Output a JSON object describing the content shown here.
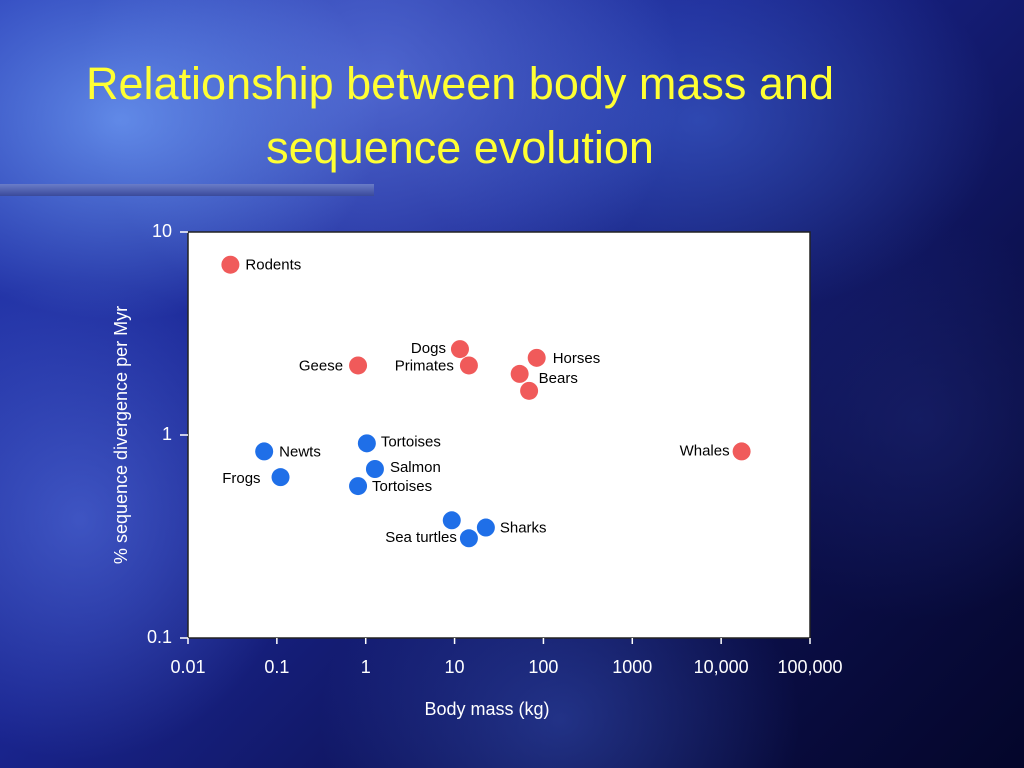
{
  "chart_data": {
    "type": "scatter",
    "title": "Relationship between body mass and sequence evolution",
    "x_label": "Body mass (kg)",
    "y_label": "% sequence divergence per Myr",
    "xscale": "log",
    "yscale": "log",
    "xlim": [
      0.01,
      100000
    ],
    "ylim": [
      0.1,
      10
    ],
    "xticks": [
      0.01,
      0.1,
      1,
      10,
      100,
      1000,
      {
        "value": 10000,
        "label": "10,000"
      },
      {
        "value": 100000,
        "label": "100,000"
      }
    ],
    "yticks": [
      0.1,
      1,
      10
    ],
    "series": [
      {
        "color": "#f05a5a",
        "x": [
          0.03,
          0.82,
          11.5,
          14.5,
          84,
          54,
          69,
          17000
        ],
        "values": [
          6.9,
          2.2,
          2.65,
          2.2,
          2.4,
          2.0,
          1.65,
          0.83
        ],
        "labels": [
          "Rodents",
          "Geese",
          "Dogs",
          "Primates",
          "Horses",
          "Bears",
          null,
          "Whales"
        ]
      },
      {
        "color": "#1f6fe8",
        "x": [
          0.072,
          0.11,
          1.03,
          1.27,
          0.82,
          9.3,
          14.5,
          22.5
        ],
        "values": [
          0.83,
          0.62,
          0.91,
          0.68,
          0.56,
          0.38,
          0.31,
          0.35
        ],
        "labels": [
          "Newts",
          "Frogs",
          "Tortoises",
          "Salmon",
          "Tortoises",
          null,
          "Sea turtles",
          "Sharks"
        ]
      }
    ]
  }
}
